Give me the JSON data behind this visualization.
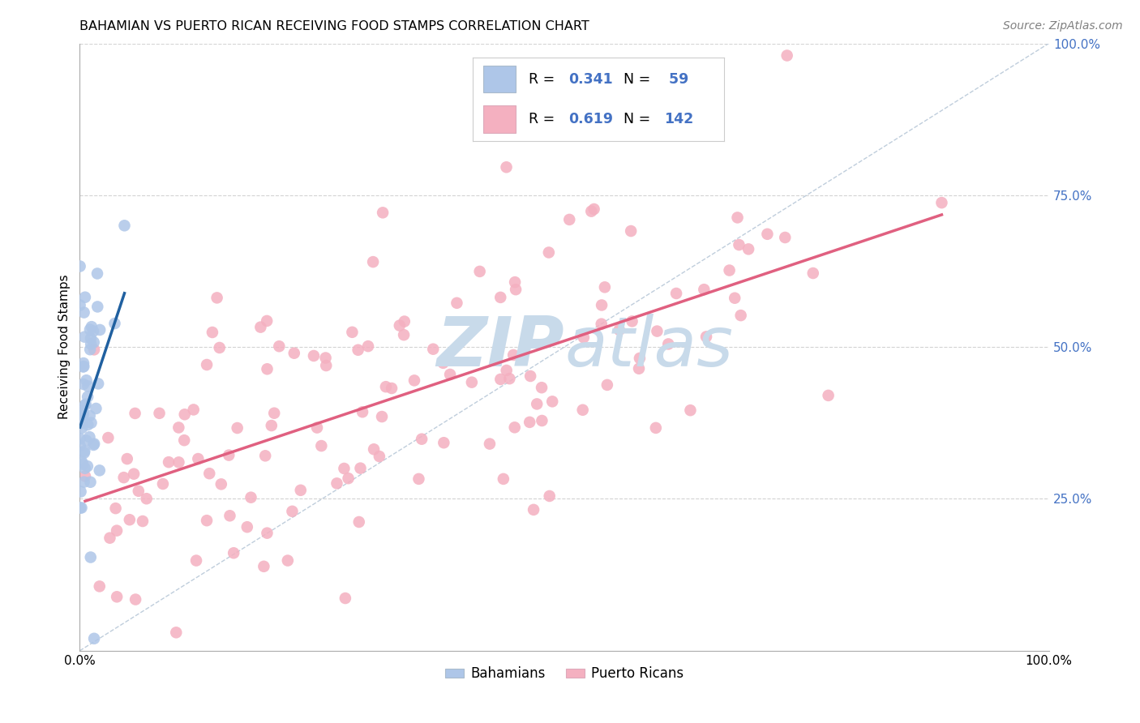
{
  "title": "BAHAMIAN VS PUERTO RICAN RECEIVING FOOD STAMPS CORRELATION CHART",
  "source": "Source: ZipAtlas.com",
  "ylabel": "Receiving Food Stamps",
  "bahamian_color": "#aec6e8",
  "bahamian_line_color": "#2060a0",
  "puerto_rican_color": "#f4b0c0",
  "puerto_rican_line_color": "#e06080",
  "diagonal_color": "#b8c8d8",
  "R_bahamian": 0.341,
  "N_bahamian": 59,
  "R_puerto_rican": 0.619,
  "N_puerto_rican": 142,
  "watermark_color": "#c8daea",
  "background_color": "#ffffff",
  "grid_color": "#c8c8c8",
  "right_tick_color": "#4472c4",
  "title_fontsize": 11.5,
  "legend_text_color": "#4472c4"
}
